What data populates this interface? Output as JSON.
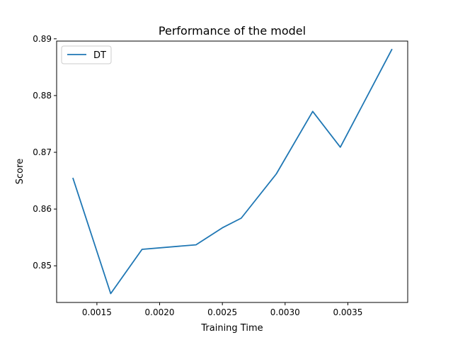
{
  "chart_data": {
    "type": "line",
    "title": "Performance of the model",
    "xlabel": "Training Time",
    "ylabel": "Score",
    "xlim": [
      0.001179,
      0.003977
    ],
    "ylim": [
      0.84354,
      0.8896
    ],
    "xticks": [
      0.0015,
      0.002,
      0.0025,
      0.003,
      0.0035
    ],
    "xtick_labels": [
      "0.0015",
      "0.0020",
      "0.0025",
      "0.0030",
      "0.0035"
    ],
    "yticks": [
      0.85,
      0.86,
      0.87,
      0.88,
      0.89
    ],
    "ytick_labels": [
      "0.85",
      "0.86",
      "0.87",
      "0.88",
      "0.89"
    ],
    "grid": false,
    "legend": {
      "position": "top-left",
      "entries": [
        "DT"
      ]
    },
    "series": [
      {
        "name": "DT",
        "color": "#1f77b4",
        "x": [
          0.00131,
          0.00161,
          0.00186,
          0.00229,
          0.0025,
          0.00265,
          0.00293,
          0.00322,
          0.00344,
          0.00385
        ],
        "y": [
          0.8654,
          0.8451,
          0.8529,
          0.8537,
          0.8567,
          0.8584,
          0.8662,
          0.8772,
          0.8709,
          0.8881
        ]
      }
    ]
  }
}
